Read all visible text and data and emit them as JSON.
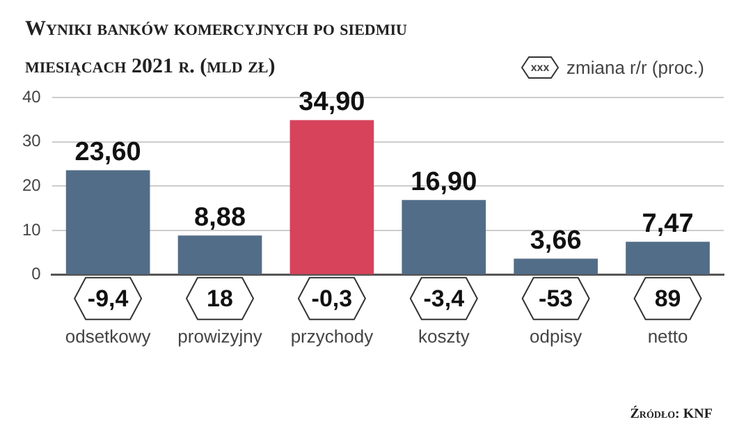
{
  "chart_data": {
    "type": "bar",
    "title": "Wyniki banków komercyjnych po siedmiu miesiącach 2021 r. (mld zł)",
    "categories": [
      "odsetkowy",
      "prowizyjny",
      "przychody",
      "koszty",
      "odpisy",
      "netto"
    ],
    "values": [
      23.6,
      8.88,
      34.9,
      16.9,
      3.66,
      7.47
    ],
    "value_labels": [
      "23,60",
      "8,88",
      "34,90",
      "16,90",
      "3,66",
      "7,47"
    ],
    "colors": [
      "#526d87",
      "#526d87",
      "#d6435b",
      "#526d87",
      "#526d87",
      "#526d87"
    ],
    "ylim": [
      0,
      40
    ],
    "yticks": [
      0,
      10,
      20,
      30,
      40
    ],
    "grid": "y",
    "annotations": [
      "xxx",
      "zmiana r/r (proc.)",
      "Źródło: KNF",
      "-9,4",
      "18",
      "-0,3",
      "-3,4",
      "-53",
      "89"
    ]
  }
}
